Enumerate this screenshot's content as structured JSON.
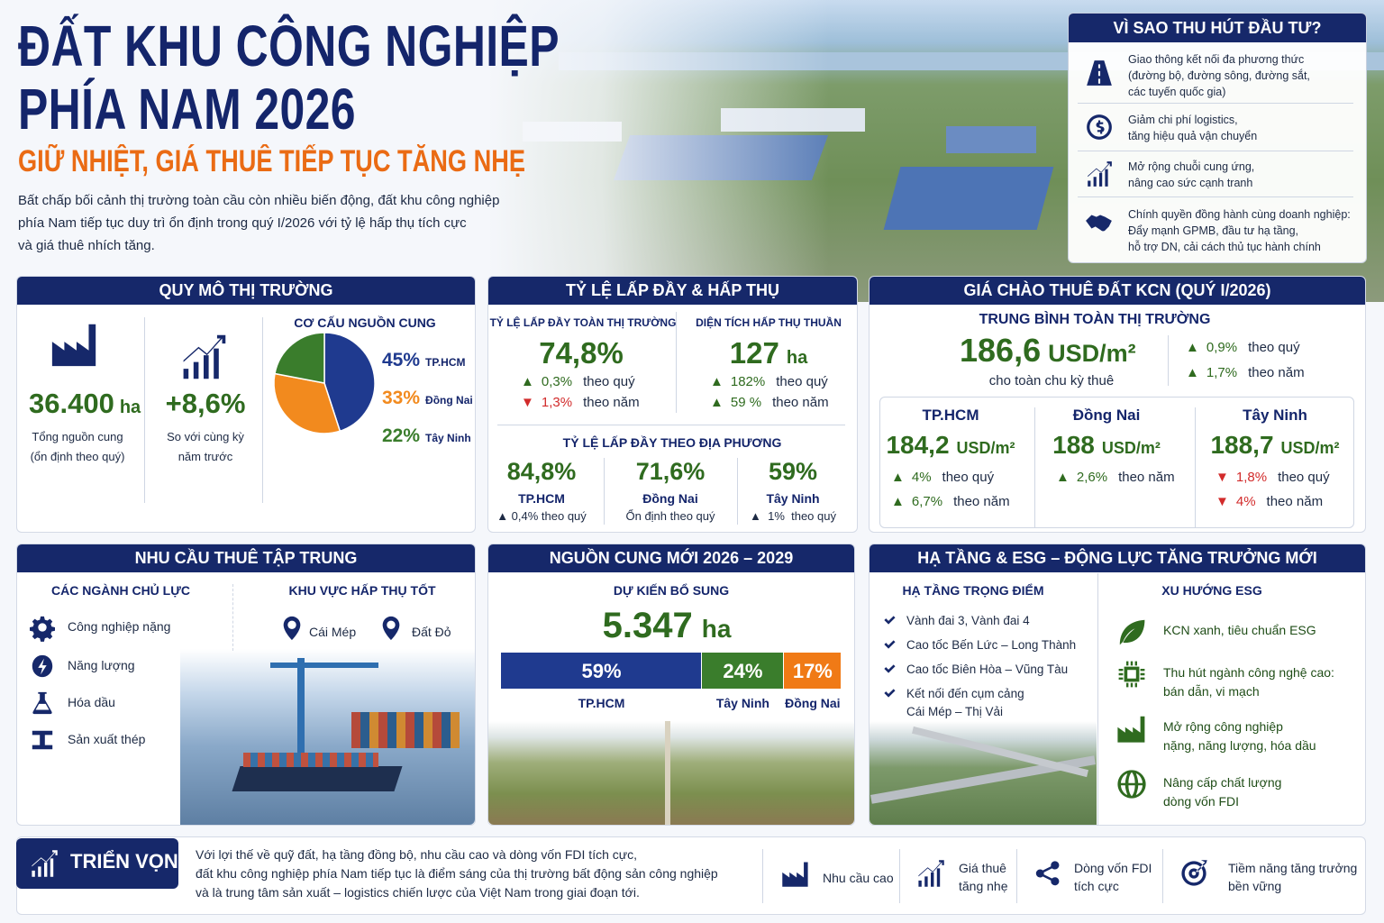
{
  "header": {
    "title_1": "ĐẤT KHU CÔNG NGHIỆP",
    "title_2": "PHÍA NAM 2026",
    "subtitle": "GIỮ NHIỆT, GIÁ THUÊ TIẾP TỤC TĂNG NHẸ",
    "intro": "Bất chấp bối cảnh thị trường toàn cầu còn nhiều biến động, đất khu công nghiệp\nphía Nam tiếp tục duy trì ổn định trong quý I/2026 với tỷ lệ hấp thụ tích cực\nvà giá thuê nhích tăng."
  },
  "why": {
    "title": "VÌ SAO THU HÚT ĐẦU TƯ?",
    "items": [
      "Giao thông kết nối đa phương thức\n(đường bộ, đường sông, đường sắt,\ncác tuyến quốc gia)",
      "Giảm chi phí logistics,\ntăng hiệu quả vận chuyển",
      "Mở rộng chuỗi cung ứng,\nnâng cao sức cạnh tranh",
      "Chính quyền đồng hành cùng doanh nghiệp:\nĐẩy mạnh GPMB, đầu tư hạ tầng,\nhỗ trợ DN, cải cách thủ tục hành chính"
    ]
  },
  "market": {
    "title": "QUY MÔ THỊ TRƯỜNG",
    "supply_value": "36.400",
    "supply_unit": "ha",
    "supply_label": "Tổng nguồn cung\n(ổn định theo quý)",
    "growth_value": "+8,6%",
    "growth_label": "So với cùng kỳ\nnăm trước",
    "pie": {
      "title": "CƠ CẤU NGUỒN CUNG",
      "categories": [
        "TP.HCM",
        "Đồng Nai",
        "Tây Ninh"
      ],
      "values": [
        45,
        33,
        22
      ],
      "value_labels": [
        "45%",
        "33%",
        "22%"
      ],
      "colors": [
        "#1f3a8f",
        "#f28a1e",
        "#3a7d2c"
      ]
    }
  },
  "occupancy": {
    "title": "TỶ LỆ LẤP ĐẦY & HẤP THỤ",
    "overall_label": "TỶ LỆ LẤP ĐẦY TOÀN THỊ TRƯỜNG",
    "overall_value": "74,8%",
    "overall_changes": [
      {
        "arrow": "▲",
        "value": "0,3%",
        "label": "theo quý"
      },
      {
        "arrow": "▼",
        "value": "1,3%",
        "label": "theo năm"
      }
    ],
    "absorption_label": "DIỆN TÍCH HẤP THỤ THUẦN",
    "absorption_value": "127",
    "absorption_unit": "ha",
    "absorption_changes": [
      {
        "arrow": "▲",
        "value": "182%",
        "label": "theo quý"
      },
      {
        "arrow": "▲",
        "value": "59 %",
        "label": "theo năm"
      }
    ],
    "regional_title": "TỶ LỆ LẤP ĐẦY THEO ĐỊA PHƯƠNG",
    "regions": [
      {
        "value": "84,8%",
        "name": "TP.HCM",
        "note": "▲ 0,4% theo quý"
      },
      {
        "value": "71,6%",
        "name": "Đồng Nai",
        "note": "Ổn định theo quý"
      },
      {
        "value": "59%",
        "name": "Tây Ninh",
        "note": "▲  1%  theo quý"
      }
    ]
  },
  "price": {
    "title": "GIÁ CHÀO THUÊ ĐẤT KCN (QUÝ I/2026)",
    "avg_label": "TRUNG BÌNH TOÀN THỊ TRƯỜNG",
    "avg_value": "186,6",
    "unit": "USD/m²",
    "avg_note": "cho toàn chu kỳ thuê",
    "avg_changes": [
      {
        "arrow": "▲",
        "value": "0,9%",
        "label": "theo quý"
      },
      {
        "arrow": "▲",
        "value": "1,7%",
        "label": "theo năm"
      }
    ],
    "cities": [
      {
        "name": "TP.HCM",
        "value": "184,2",
        "changes": [
          {
            "arrow": "▲",
            "value": "4%",
            "label": "theo quý"
          },
          {
            "arrow": "▲",
            "value": "6,7%",
            "label": "theo năm"
          }
        ]
      },
      {
        "name": "Đồng Nai",
        "value": "188",
        "changes": [
          {
            "arrow": "▲",
            "value": "2,6%",
            "label": "theo năm"
          }
        ]
      },
      {
        "name": "Tây Ninh",
        "value": "188,7",
        "changes": [
          {
            "arrow": "▼",
            "value": "1,8%",
            "label": "theo quý"
          },
          {
            "arrow": "▼",
            "value": "4%",
            "label": "theo năm"
          }
        ]
      }
    ]
  },
  "demand": {
    "title": "NHU CẦU THUÊ TẬP TRUNG",
    "industries_title": "CÁC NGÀNH CHỦ LỰC",
    "industries": [
      "Công nghiệp nặng",
      "Năng lượng",
      "Hóa dầu",
      "Sản xuất thép"
    ],
    "areas_title": "KHU VỰC HẤP THỤ TỐT",
    "areas": [
      "Cái Mép",
      "Đất Đỏ"
    ]
  },
  "new_supply": {
    "title": "NGUỒN CUNG MỚI 2026 – 2029",
    "label": "DỰ KIẾN BỔ SUNG",
    "value": "5.347",
    "unit": "ha",
    "bar": {
      "categories": [
        "TP.HCM",
        "Tây Ninh",
        "Đồng Nai"
      ],
      "values": [
        59,
        24,
        17
      ],
      "value_labels": [
        "59%",
        "24%",
        "17%"
      ],
      "colors": [
        "#1f3a8f",
        "#3a7d2c",
        "#f07a16"
      ]
    }
  },
  "infra": {
    "title": "HẠ TẦNG & ESG – ĐỘNG LỰC TĂNG TRƯỞNG MỚI",
    "infra_title": "HẠ TẦNG TRỌNG ĐIỂM",
    "infra_items": [
      "Vành đai 3, Vành đai 4",
      "Cao tốc Bến Lức – Long Thành",
      "Cao tốc Biên Hòa – Vũng Tàu",
      "Kết nối đến cụm cảng\nCái Mép – Thị Vải"
    ],
    "esg_title": "XU HƯỚNG ESG",
    "esg_items": [
      "KCN xanh, tiêu chuẩn ESG",
      "Thu hút ngành công nghệ cao:\nbán dẫn, vi mạch",
      "Mở rộng công nghiệp\nnặng, năng lượng, hóa dầu",
      "Nâng cấp chất lượng\ndòng vốn FDI"
    ]
  },
  "outlook": {
    "title": "TRIỂN VỌNG",
    "text": "Với lợi thế về quỹ đất, hạ tầng đồng bộ, nhu cầu cao và dòng vốn FDI tích cực,\nđất khu công nghiệp phía Nam tiếp tục là điểm sáng của thị trường bất động sản công nghiệp\nvà là trung tâm sản xuất – logistics chiến lược của Việt Nam trong giai đoạn tới.",
    "highlights": [
      "Nhu cầu cao",
      "Giá thuê\ntăng nhẹ",
      "Dòng vốn FDI\ntích cực",
      "Tiềm năng tăng trưởng\nbền vững"
    ]
  }
}
